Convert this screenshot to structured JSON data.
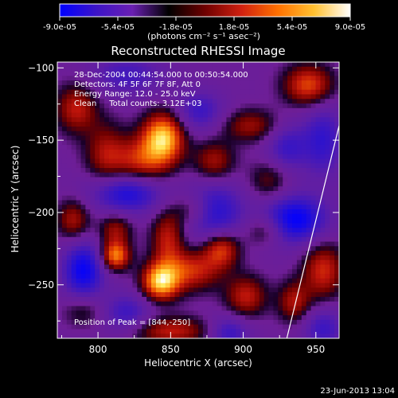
{
  "colorbar": {
    "tick_labels": [
      "-9.0e-05",
      "-5.4e-05",
      "-1.8e-05",
      "1.8e-05",
      "5.4e-05",
      "9.0e-05"
    ],
    "tick_values": [
      -9e-05,
      -5.4e-05,
      -1.8e-05,
      1.8e-05,
      5.4e-05,
      9e-05
    ],
    "units_label": "(photons cm⁻² s⁻¹ asec⁻²)",
    "colors": [
      "#0000ff",
      "#3c14c8",
      "#6a1fb2",
      "#000000",
      "#6e0000",
      "#d02010",
      "#ff7000",
      "#ffc030",
      "#ffffff"
    ]
  },
  "chart_data": {
    "type": "heatmap",
    "title": "Reconstructed RHESSI Image",
    "xlabel": "Heliocentric X (arcsec)",
    "ylabel": "Heliocentric Y (arcsec)",
    "xlim": [
      772,
      966
    ],
    "ylim": [
      -287,
      -96
    ],
    "xticks": [
      800,
      850,
      900,
      950
    ],
    "yticks": [
      -100,
      -150,
      -200,
      -250
    ],
    "value_range": [
      -9e-05,
      9e-05
    ],
    "annotations": [
      "28-Dec-2004 00:44:54.000 to 00:50:54.000",
      "Detectors: 4F 5F 6F 7F 8F, Att 0",
      "Energy Range: 12.0 - 25.0 keV",
      "Clean     Total counts: 3.12E+03"
    ],
    "peak_label": "Position of Peak = [844,-250]",
    "peak": [
      844,
      -250
    ],
    "limb_line": [
      [
        966,
        -140
      ],
      [
        930,
        -287
      ]
    ],
    "blobs": [
      {
        "x": 845,
        "y": -148,
        "amp": 1.0,
        "sx": 10,
        "sy": 12
      },
      {
        "x": 830,
        "y": -165,
        "amp": 0.6,
        "sx": 14,
        "sy": 12
      },
      {
        "x": 785,
        "y": -128,
        "amp": 0.55,
        "sx": 10,
        "sy": 12
      },
      {
        "x": 805,
        "y": -160,
        "amp": 0.45,
        "sx": 10,
        "sy": 16
      },
      {
        "x": 880,
        "y": -165,
        "amp": 0.5,
        "sx": 10,
        "sy": 10
      },
      {
        "x": 905,
        "y": -140,
        "amp": 0.45,
        "sx": 14,
        "sy": 8
      },
      {
        "x": 945,
        "y": -112,
        "amp": 0.7,
        "sx": 12,
        "sy": 10
      },
      {
        "x": 918,
        "y": -178,
        "amp": 0.35,
        "sx": 10,
        "sy": 10
      },
      {
        "x": 783,
        "y": -205,
        "amp": 0.5,
        "sx": 8,
        "sy": 10
      },
      {
        "x": 812,
        "y": -212,
        "amp": 0.45,
        "sx": 8,
        "sy": 8
      },
      {
        "x": 812,
        "y": -230,
        "amp": 0.85,
        "sx": 7,
        "sy": 7
      },
      {
        "x": 848,
        "y": -218,
        "amp": 0.55,
        "sx": 8,
        "sy": 14
      },
      {
        "x": 843,
        "y": -248,
        "amp": 1.0,
        "sx": 9,
        "sy": 9
      },
      {
        "x": 865,
        "y": -240,
        "amp": 0.6,
        "sx": 14,
        "sy": 10
      },
      {
        "x": 885,
        "y": -225,
        "amp": 0.7,
        "sx": 9,
        "sy": 9
      },
      {
        "x": 865,
        "y": -198,
        "amp": 0.35,
        "sx": 10,
        "sy": 8
      },
      {
        "x": 915,
        "y": -212,
        "amp": 0.4,
        "sx": 10,
        "sy": 8
      },
      {
        "x": 902,
        "y": -258,
        "amp": 0.55,
        "sx": 10,
        "sy": 10
      },
      {
        "x": 850,
        "y": -282,
        "amp": 0.55,
        "sx": 20,
        "sy": 7
      },
      {
        "x": 955,
        "y": -240,
        "amp": 0.6,
        "sx": 10,
        "sy": 14
      },
      {
        "x": 935,
        "y": -262,
        "amp": 0.5,
        "sx": 8,
        "sy": 10
      },
      {
        "x": 790,
        "y": -268,
        "amp": 0.3,
        "sx": 10,
        "sy": 8
      },
      {
        "x": 820,
        "y": -186,
        "amp": -0.7,
        "sx": 18,
        "sy": 10
      },
      {
        "x": 790,
        "y": -240,
        "amp": -0.75,
        "sx": 10,
        "sy": 14
      },
      {
        "x": 880,
        "y": -200,
        "amp": -0.6,
        "sx": 14,
        "sy": 16
      },
      {
        "x": 935,
        "y": -205,
        "amp": -0.8,
        "sx": 16,
        "sy": 12
      },
      {
        "x": 955,
        "y": -150,
        "amp": -0.5,
        "sx": 10,
        "sy": 18
      },
      {
        "x": 930,
        "y": -155,
        "amp": -0.45,
        "sx": 10,
        "sy": 12
      },
      {
        "x": 870,
        "y": -130,
        "amp": -0.45,
        "sx": 12,
        "sy": 10
      },
      {
        "x": 820,
        "y": -105,
        "amp": -0.4,
        "sx": 18,
        "sy": 10
      },
      {
        "x": 890,
        "y": -283,
        "amp": -0.5,
        "sx": 10,
        "sy": 8
      },
      {
        "x": 955,
        "y": -280,
        "amp": -0.45,
        "sx": 10,
        "sy": 10
      },
      {
        "x": 820,
        "y": -270,
        "amp": -0.45,
        "sx": 12,
        "sy": 10
      }
    ]
  },
  "footer": {
    "timestamp": "23-Jun-2013 13:04"
  }
}
